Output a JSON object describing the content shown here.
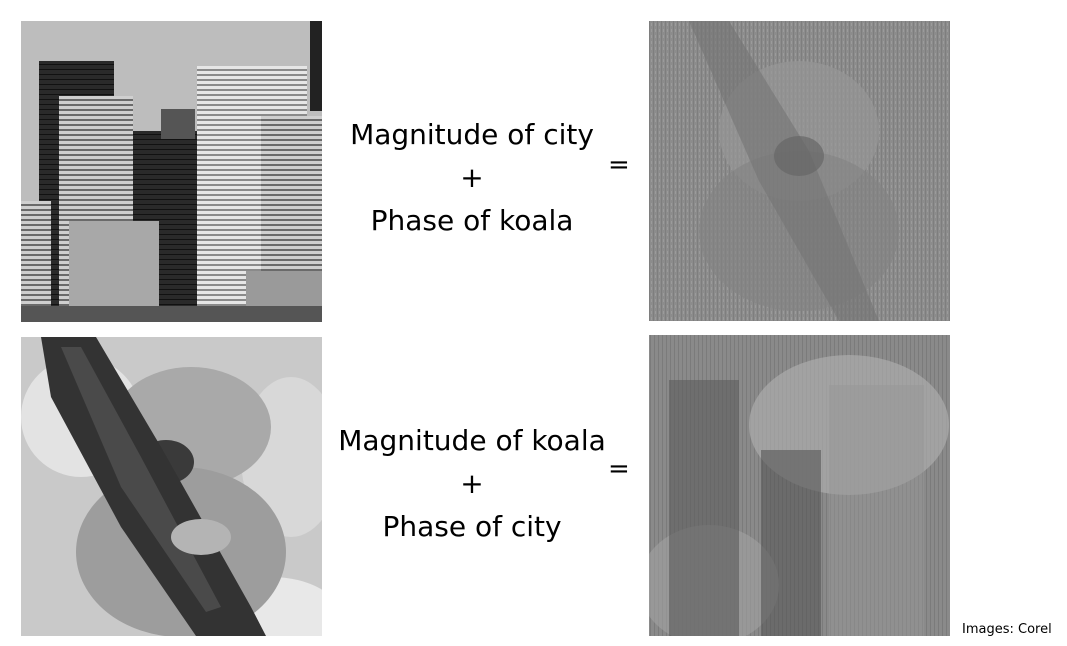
{
  "row1": {
    "line1": "Magnitude of city",
    "plus": "+",
    "line2": "Phase of koala",
    "equals": "="
  },
  "row2": {
    "line1": "Magnitude of koala",
    "plus": "+",
    "line2": "Phase of city",
    "equals": "="
  },
  "credit": "Images: Corel"
}
